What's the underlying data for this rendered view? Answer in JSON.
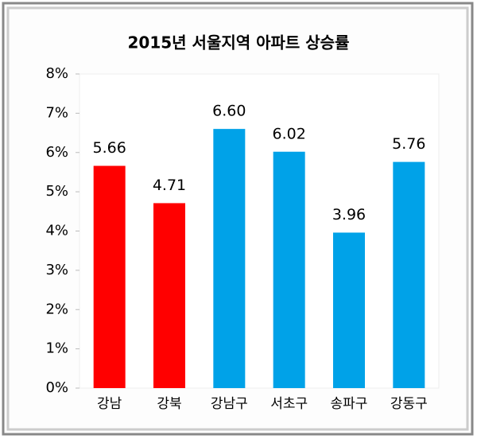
{
  "chart_data": {
    "type": "bar",
    "title": "2015년 서울지역 아파트 상승률",
    "categories": [
      "강남",
      "강북",
      "강남구",
      "서초구",
      "송파구",
      "강동구"
    ],
    "values": [
      5.66,
      4.71,
      6.6,
      6.02,
      3.96,
      5.76
    ],
    "value_labels": [
      "5.66",
      "4.71",
      "6.60",
      "6.02",
      "3.96",
      "5.76"
    ],
    "colors": [
      "#ff0000",
      "#ff0000",
      "#00a2e8",
      "#00a2e8",
      "#00a2e8",
      "#00a2e8"
    ],
    "ylim": [
      0,
      8
    ],
    "yticks": [
      {
        "value": 0,
        "label": "0%"
      },
      {
        "value": 1,
        "label": "1%"
      },
      {
        "value": 2,
        "label": "2%"
      },
      {
        "value": 3,
        "label": "3%"
      },
      {
        "value": 4,
        "label": "4%"
      },
      {
        "value": 5,
        "label": "5%"
      },
      {
        "value": 6,
        "label": "6%"
      },
      {
        "value": 7,
        "label": "7%"
      },
      {
        "value": 8,
        "label": "8%"
      }
    ],
    "grid": false
  }
}
